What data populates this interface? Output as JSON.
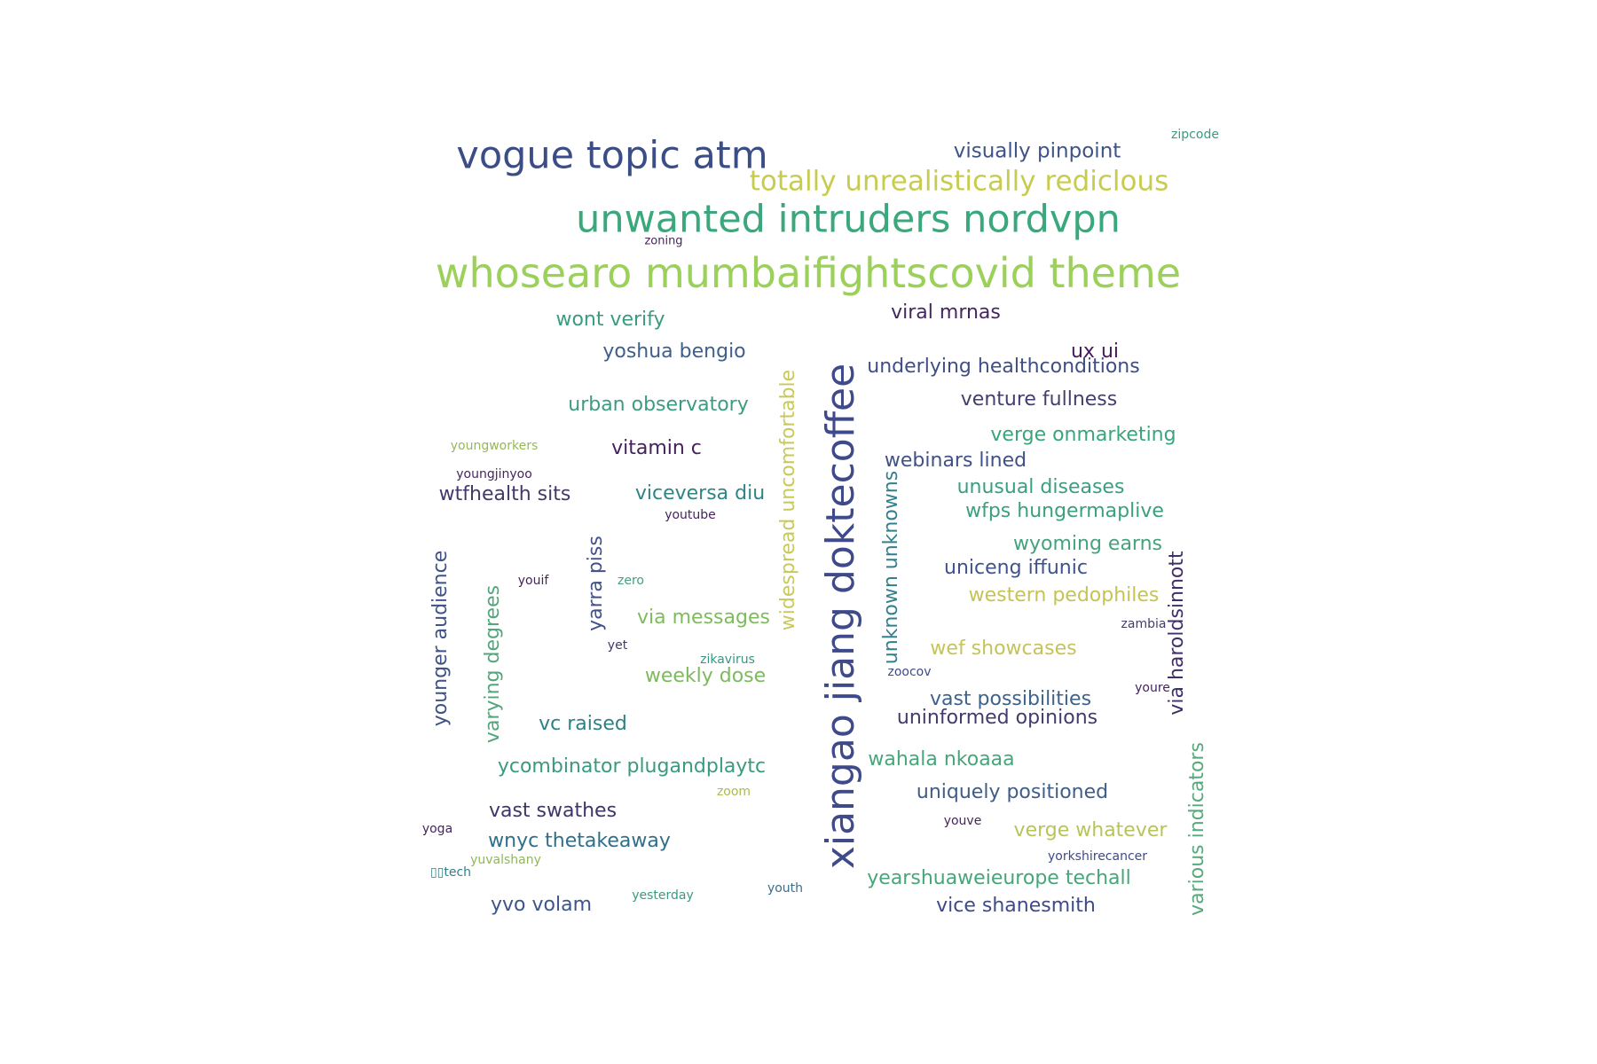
{
  "word_cloud": {
    "words": [
      {
        "text": "xiangao jiang doktecoffee",
        "color": "#3e4a89"
      },
      {
        "text": "whosearo mumbaifightscovid theme",
        "color": "#9bd05a"
      },
      {
        "text": "unwanted intruders nordvpn",
        "color": "#3aa87c"
      },
      {
        "text": "vogue topic atm",
        "color": "#3b4d86"
      },
      {
        "text": "totally unrealistically rediclous",
        "color": "#c8cc4e"
      },
      {
        "text": "visually pinpoint",
        "color": "#3e5388"
      },
      {
        "text": "zipcode",
        "color": "#3a9a82"
      },
      {
        "text": "zoning",
        "color": "#46245e"
      },
      {
        "text": "viral mrnas",
        "color": "#45275f"
      },
      {
        "text": "wont verify",
        "color": "#3a9b7f"
      },
      {
        "text": "yoshua bengio",
        "color": "#3e5f8a"
      },
      {
        "text": "ux ui",
        "color": "#45195a"
      },
      {
        "text": "underlying healthconditions",
        "color": "#3f4f86"
      },
      {
        "text": "urban observatory",
        "color": "#3d9b80"
      },
      {
        "text": "venture fullness",
        "color": "#43406f"
      },
      {
        "text": "verge onmarketing",
        "color": "#3aa57c"
      },
      {
        "text": "youngworkers",
        "color": "#95b957"
      },
      {
        "text": "vitamin c",
        "color": "#45215c"
      },
      {
        "text": "webinars lined",
        "color": "#3f5287"
      },
      {
        "text": "youngjinyoo",
        "color": "#45275f"
      },
      {
        "text": "unusual diseases",
        "color": "#3a9f80"
      },
      {
        "text": "wtfhealth sits",
        "color": "#44386b"
      },
      {
        "text": "viceversa diu",
        "color": "#2e8584"
      },
      {
        "text": "wfps hungermaplive",
        "color": "#3aa07d"
      },
      {
        "text": "youtube",
        "color": "#46245e"
      },
      {
        "text": "widespread uncomfortable",
        "color": "#c8c95a"
      },
      {
        "text": "unknown unknowns",
        "color": "#347f8d"
      },
      {
        "text": "wyoming earns",
        "color": "#44a27c"
      },
      {
        "text": "yarra piss",
        "color": "#445288"
      },
      {
        "text": "younger audience",
        "color": "#3f5387"
      },
      {
        "text": "varying degrees",
        "color": "#53a67b"
      },
      {
        "text": "uniceng iffunic",
        "color": "#3e5389"
      },
      {
        "text": "youif",
        "color": "#46245e"
      },
      {
        "text": "zero",
        "color": "#44a07d"
      },
      {
        "text": "western pedophiles",
        "color": "#c6c353"
      },
      {
        "text": "via haroldsinnott",
        "color": "#40306a"
      },
      {
        "text": "via messages",
        "color": "#7fbb5e"
      },
      {
        "text": "zambia",
        "color": "#423e6e"
      },
      {
        "text": "yet",
        "color": "#44386b"
      },
      {
        "text": "wef showcases",
        "color": "#c5c35a"
      },
      {
        "text": "zikavirus",
        "color": "#3a9782"
      },
      {
        "text": "weekly dose",
        "color": "#7dba5f"
      },
      {
        "text": "zoocov",
        "color": "#3e4a89"
      },
      {
        "text": "youre",
        "color": "#46245e"
      },
      {
        "text": "vast possibilities",
        "color": "#3e6289"
      },
      {
        "text": "uninformed opinions",
        "color": "#423b6d"
      },
      {
        "text": "vc raised",
        "color": "#2f8085"
      },
      {
        "text": "various indicators",
        "color": "#56aa7b"
      },
      {
        "text": "wahala nkoaaa",
        "color": "#48a57b"
      },
      {
        "text": "ycombinator plugandplaytc",
        "color": "#3a9a80"
      },
      {
        "text": "uniquely positioned",
        "color": "#3f5d89"
      },
      {
        "text": "zoom",
        "color": "#a7bd4f"
      },
      {
        "text": "vast swathes",
        "color": "#3e3569"
      },
      {
        "text": "yoga",
        "color": "#46245e"
      },
      {
        "text": "youve",
        "color": "#46245e"
      },
      {
        "text": "verge whatever",
        "color": "#b8c45a"
      },
      {
        "text": "wnyc thetakeaway",
        "color": "#2f6f8a"
      },
      {
        "text": "yorkshirecancer",
        "color": "#3e4a89"
      },
      {
        "text": "yuvalshany",
        "color": "#8fb957"
      },
      {
        "text": "yearshuaweieurope techall",
        "color": "#48a57b"
      },
      {
        "text": "▯▯tech",
        "color": "#2f7f8b"
      },
      {
        "text": "youth",
        "color": "#3a6f8a"
      },
      {
        "text": "yesterday",
        "color": "#3a9a82"
      },
      {
        "text": "yvo volam",
        "color": "#3e5589"
      },
      {
        "text": "vice shanesmith",
        "color": "#3e4a89"
      }
    ]
  }
}
